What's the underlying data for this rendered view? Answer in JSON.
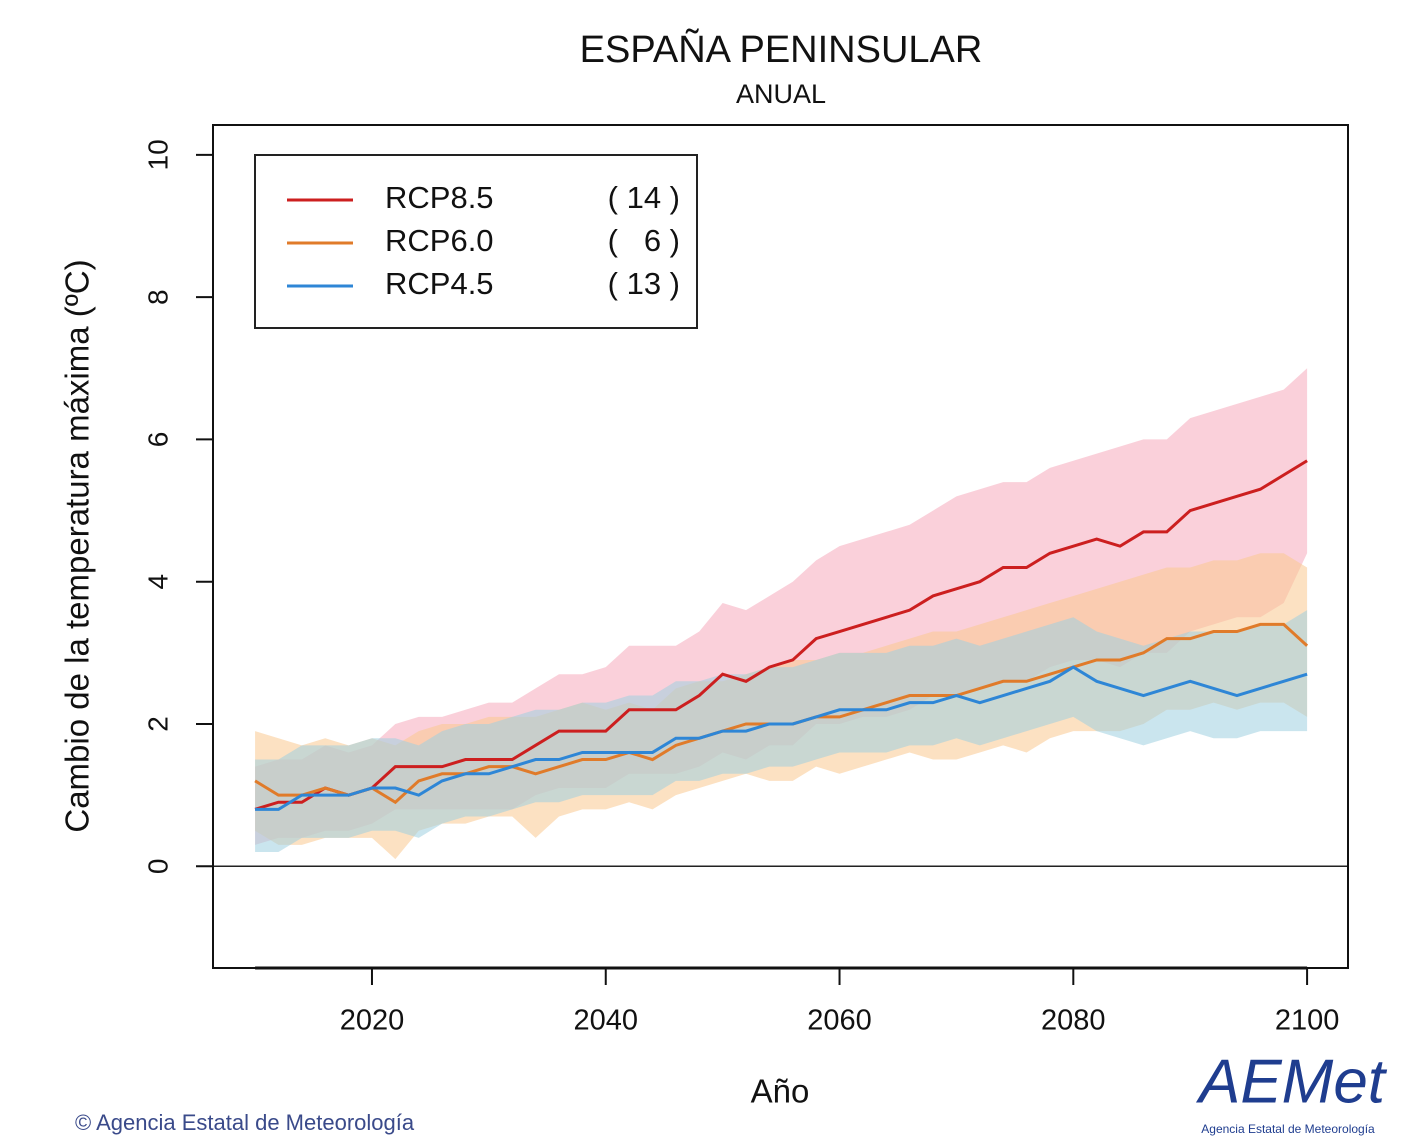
{
  "chart_data": {
    "type": "line",
    "title": "ESPAÑA PENINSULAR",
    "subtitle": "ANUAL",
    "x_label": "Año",
    "y_label": "Cambio de la temperatura máxima (ºC)",
    "xlim": [
      2006.4,
      2103.5
    ],
    "ylim": [
      -1.43,
      10.42
    ],
    "xticks": [
      2020,
      2040,
      2060,
      2080,
      2100
    ],
    "yticks": [
      0,
      2,
      4,
      6,
      8,
      10
    ],
    "reference_line": 0,
    "legend": "top-left",
    "x": [
      2010,
      2012,
      2014,
      2016,
      2018,
      2020,
      2022,
      2024,
      2026,
      2028,
      2030,
      2032,
      2034,
      2036,
      2038,
      2040,
      2042,
      2044,
      2046,
      2048,
      2050,
      2052,
      2054,
      2056,
      2058,
      2060,
      2062,
      2064,
      2066,
      2068,
      2070,
      2072,
      2074,
      2076,
      2078,
      2080,
      2082,
      2084,
      2086,
      2088,
      2090,
      2092,
      2094,
      2096,
      2098,
      2100
    ],
    "series": [
      {
        "name": "RCP8.5",
        "legend_count": "( 14 )",
        "color": "#cc1f1f",
        "band_color": "#f5a9bc",
        "values": [
          0.8,
          0.9,
          0.9,
          1.1,
          1.0,
          1.1,
          1.4,
          1.4,
          1.4,
          1.5,
          1.5,
          1.5,
          1.7,
          1.9,
          1.9,
          1.9,
          2.2,
          2.2,
          2.2,
          2.4,
          2.7,
          2.6,
          2.8,
          2.9,
          3.2,
          3.3,
          3.4,
          3.5,
          3.6,
          3.8,
          3.9,
          4.0,
          4.2,
          4.2,
          4.4,
          4.5,
          4.6,
          4.5,
          4.7,
          4.7,
          5.0,
          5.1,
          5.2,
          5.3,
          5.5,
          5.7
        ],
        "low": [
          0.3,
          0.4,
          0.4,
          0.5,
          0.5,
          0.6,
          0.8,
          0.8,
          0.8,
          0.8,
          0.8,
          0.8,
          1.0,
          1.1,
          1.1,
          1.1,
          1.3,
          1.3,
          1.3,
          1.4,
          1.6,
          1.5,
          1.7,
          1.7,
          2.0,
          2.0,
          2.1,
          2.1,
          2.2,
          2.4,
          2.4,
          2.5,
          2.6,
          2.6,
          2.8,
          2.9,
          2.9,
          2.8,
          3.0,
          3.0,
          3.3,
          3.4,
          3.5,
          3.5,
          3.7,
          4.4
        ],
        "high": [
          1.4,
          1.5,
          1.5,
          1.7,
          1.6,
          1.7,
          2.0,
          2.1,
          2.1,
          2.2,
          2.3,
          2.3,
          2.5,
          2.7,
          2.7,
          2.8,
          3.1,
          3.1,
          3.1,
          3.3,
          3.7,
          3.6,
          3.8,
          4.0,
          4.3,
          4.5,
          4.6,
          4.7,
          4.8,
          5.0,
          5.2,
          5.3,
          5.4,
          5.4,
          5.6,
          5.7,
          5.8,
          5.9,
          6.0,
          6.0,
          6.3,
          6.4,
          6.5,
          6.6,
          6.7,
          7.0
        ]
      },
      {
        "name": "RCP6.0",
        "legend_count": "(   6 )",
        "color": "#e07b2a",
        "band_color": "#f9c98f",
        "values": [
          1.2,
          1.0,
          1.0,
          1.1,
          1.0,
          1.1,
          0.9,
          1.2,
          1.3,
          1.3,
          1.4,
          1.4,
          1.3,
          1.4,
          1.5,
          1.5,
          1.6,
          1.5,
          1.7,
          1.8,
          1.9,
          2.0,
          2.0,
          2.0,
          2.1,
          2.1,
          2.2,
          2.3,
          2.4,
          2.4,
          2.4,
          2.5,
          2.6,
          2.6,
          2.7,
          2.8,
          2.9,
          2.9,
          3.0,
          3.2,
          3.2,
          3.3,
          3.3,
          3.4,
          3.4,
          3.1
        ],
        "low": [
          0.5,
          0.3,
          0.3,
          0.4,
          0.4,
          0.4,
          0.1,
          0.5,
          0.6,
          0.6,
          0.7,
          0.7,
          0.4,
          0.7,
          0.8,
          0.8,
          0.9,
          0.8,
          1.0,
          1.1,
          1.2,
          1.3,
          1.2,
          1.2,
          1.4,
          1.3,
          1.4,
          1.5,
          1.6,
          1.5,
          1.5,
          1.6,
          1.7,
          1.6,
          1.8,
          1.9,
          1.9,
          1.9,
          2.0,
          2.2,
          2.2,
          2.3,
          2.2,
          2.3,
          2.3,
          2.1
        ],
        "high": [
          1.9,
          1.8,
          1.7,
          1.8,
          1.7,
          1.8,
          1.7,
          1.9,
          2.0,
          2.0,
          2.1,
          2.1,
          2.1,
          2.2,
          2.3,
          2.2,
          2.3,
          2.2,
          2.5,
          2.6,
          2.6,
          2.7,
          2.8,
          2.9,
          2.9,
          3.0,
          3.0,
          3.1,
          3.2,
          3.3,
          3.3,
          3.4,
          3.5,
          3.6,
          3.7,
          3.8,
          3.9,
          4.0,
          4.1,
          4.2,
          4.2,
          4.3,
          4.3,
          4.4,
          4.4,
          4.2
        ]
      },
      {
        "name": "RCP4.5",
        "legend_count": "( 13 )",
        "color": "#2e86d6",
        "band_color": "#9fd0e0",
        "values": [
          0.8,
          0.8,
          1.0,
          1.0,
          1.0,
          1.1,
          1.1,
          1.0,
          1.2,
          1.3,
          1.3,
          1.4,
          1.5,
          1.5,
          1.6,
          1.6,
          1.6,
          1.6,
          1.8,
          1.8,
          1.9,
          1.9,
          2.0,
          2.0,
          2.1,
          2.2,
          2.2,
          2.2,
          2.3,
          2.3,
          2.4,
          2.3,
          2.4,
          2.5,
          2.6,
          2.8,
          2.6,
          2.5,
          2.4,
          2.5,
          2.6,
          2.5,
          2.4,
          2.5,
          2.6,
          2.7
        ],
        "low": [
          0.2,
          0.2,
          0.4,
          0.4,
          0.4,
          0.5,
          0.5,
          0.4,
          0.6,
          0.7,
          0.7,
          0.8,
          0.9,
          0.9,
          1.0,
          1.0,
          1.0,
          1.0,
          1.2,
          1.2,
          1.3,
          1.3,
          1.4,
          1.4,
          1.5,
          1.6,
          1.6,
          1.6,
          1.7,
          1.7,
          1.8,
          1.7,
          1.8,
          1.9,
          2.0,
          2.1,
          1.9,
          1.8,
          1.7,
          1.8,
          1.9,
          1.8,
          1.8,
          1.9,
          1.9,
          1.9
        ],
        "high": [
          1.5,
          1.5,
          1.7,
          1.7,
          1.7,
          1.8,
          1.8,
          1.7,
          1.9,
          2.0,
          2.0,
          2.1,
          2.2,
          2.2,
          2.3,
          2.3,
          2.4,
          2.4,
          2.6,
          2.6,
          2.7,
          2.7,
          2.8,
          2.8,
          2.9,
          3.0,
          3.0,
          3.0,
          3.1,
          3.1,
          3.2,
          3.1,
          3.2,
          3.3,
          3.4,
          3.5,
          3.3,
          3.2,
          3.1,
          3.2,
          3.3,
          3.3,
          3.3,
          3.4,
          3.4,
          3.6
        ]
      }
    ],
    "footer": "© Agencia Estatal de Meteorología",
    "logo": "AEMet",
    "logo_caption": "Agencia Estatal de Meteorología"
  }
}
